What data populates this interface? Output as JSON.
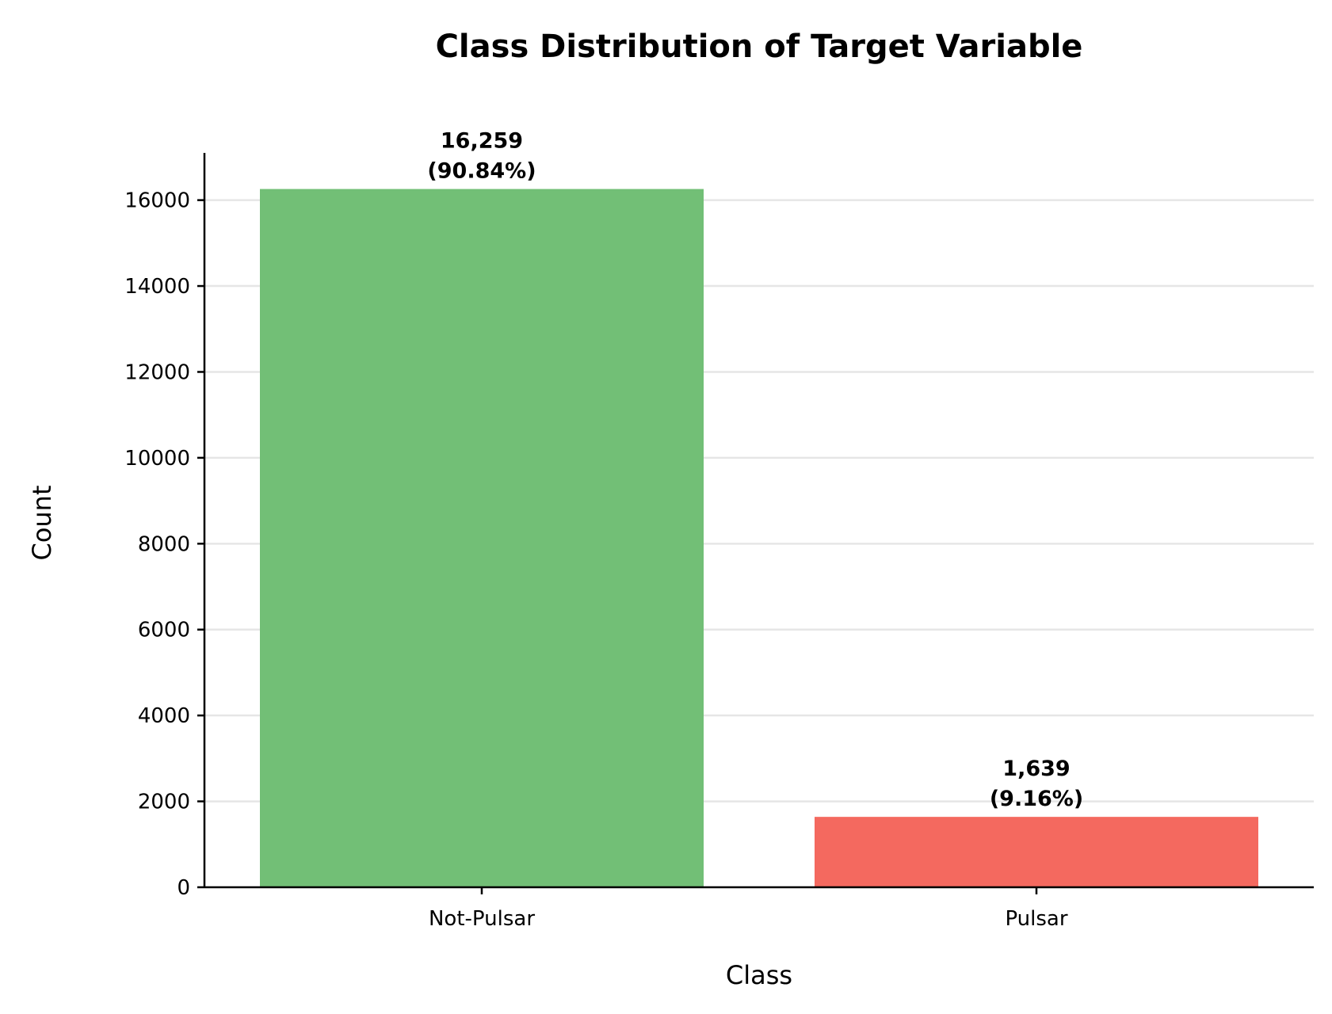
{
  "chart_data": {
    "type": "bar",
    "title": "Class Distribution of Target Variable",
    "xlabel": "Class",
    "ylabel": "Count",
    "categories": [
      "Not-Pulsar",
      "Pulsar"
    ],
    "values": [
      16259,
      1639
    ],
    "data_labels": [
      [
        "16,259",
        "(90.84%)"
      ],
      [
        "1,639",
        "(9.16%)"
      ]
    ],
    "colors": [
      "#72bf76",
      "#f4695f"
    ],
    "ylim": [
      0,
      17100
    ],
    "yticks": [
      0,
      2000,
      4000,
      6000,
      8000,
      10000,
      12000,
      14000,
      16000
    ],
    "grid": "horizontal",
    "legend": "none"
  }
}
